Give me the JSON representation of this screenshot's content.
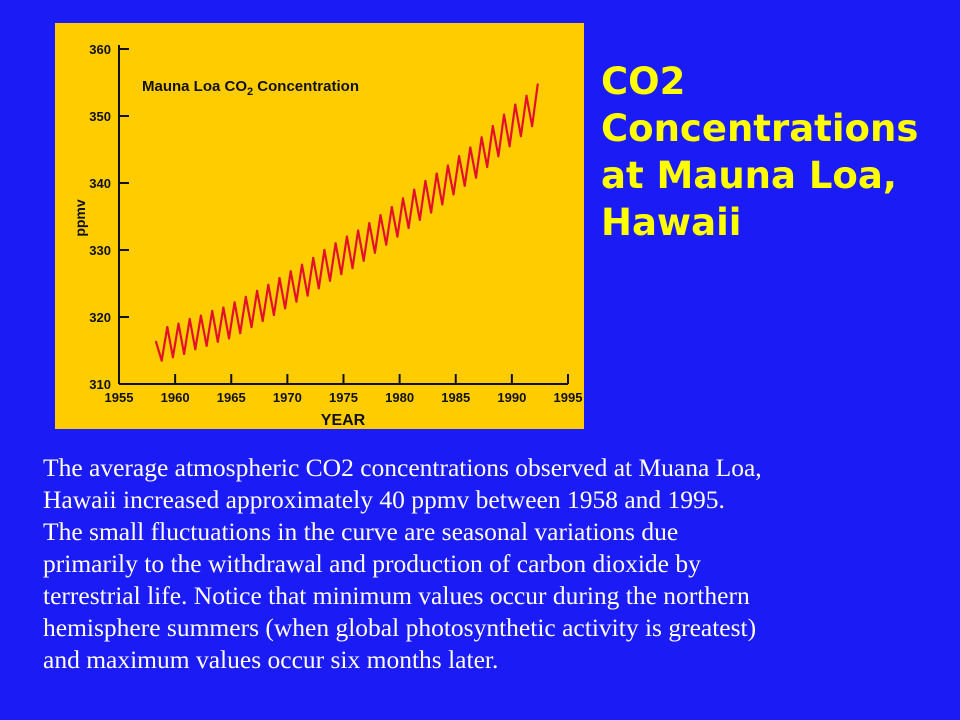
{
  "slide": {
    "title_lines": [
      "CO2",
      "Concentrations",
      "at Mauna Loa,",
      "Hawaii"
    ],
    "caption_lines": [
      "The average atmospheric CO2 concentrations observed at Muana Loa,",
      "Hawaii increased approximately 40 ppmv between 1958 and 1995.",
      "The small fluctuations in the curve are seasonal variations due",
      "primarily to the withdrawal and production of carbon dioxide by",
      "terrestrial life. Notice that minimum values occur during the northern",
      "hemisphere summers (when global photosynthetic activity is greatest)",
      "and maximum values occur six months later."
    ]
  },
  "colors": {
    "background": "#1b1bf5",
    "chart_panel": "#ffcc00",
    "title_text": "#ffff00",
    "caption_text": "#ffffff",
    "series_line": "#e3102b",
    "axis": "#111111"
  },
  "chart_data": {
    "type": "line",
    "title": "Mauna Loa CO2 Concentration",
    "xlabel": "YEAR",
    "ylabel": "ppmv",
    "xlim": [
      1955,
      1995
    ],
    "ylim": [
      310,
      360
    ],
    "x_ticks": [
      "1955",
      "1960",
      "1965",
      "1970",
      "1975",
      "1980",
      "1985",
      "1990",
      "1995"
    ],
    "y_ticks": [
      "310",
      "320",
      "330",
      "340",
      "350",
      "360"
    ],
    "grid": false,
    "legend": "none",
    "series": [
      {
        "name": "",
        "x": [
          1958.3,
          1958.8,
          1959.3,
          1959.8,
          1960.3,
          1960.8,
          1961.3,
          1961.8,
          1962.3,
          1962.8,
          1963.3,
          1963.8,
          1964.3,
          1964.8,
          1965.3,
          1965.8,
          1966.3,
          1966.8,
          1967.3,
          1967.8,
          1968.3,
          1968.8,
          1969.3,
          1969.8,
          1970.3,
          1970.8,
          1971.3,
          1971.8,
          1972.3,
          1972.8,
          1973.3,
          1973.8,
          1974.3,
          1974.8,
          1975.3,
          1975.8,
          1976.3,
          1976.8,
          1977.3,
          1977.8,
          1978.3,
          1978.8,
          1979.3,
          1979.8,
          1980.3,
          1980.8,
          1981.3,
          1981.8,
          1982.3,
          1982.8,
          1983.3,
          1983.8,
          1984.3,
          1984.8,
          1985.3,
          1985.8,
          1986.3,
          1986.8,
          1987.3,
          1987.8,
          1988.3,
          1988.8,
          1989.3,
          1989.8,
          1990.3,
          1990.8,
          1991.3,
          1991.8,
          1992.3
        ],
        "values": [
          316.3,
          313.5,
          318.5,
          314.0,
          319.0,
          314.5,
          319.7,
          315.2,
          320.2,
          315.7,
          320.9,
          316.3,
          321.4,
          316.8,
          322.2,
          317.6,
          323.0,
          318.5,
          323.9,
          319.4,
          324.8,
          320.3,
          325.8,
          321.3,
          326.8,
          322.3,
          327.8,
          323.2,
          328.8,
          324.3,
          330.0,
          325.4,
          331.0,
          326.4,
          332.0,
          327.3,
          332.9,
          328.4,
          334.0,
          329.6,
          335.2,
          330.8,
          336.4,
          332.0,
          337.7,
          333.3,
          339.0,
          334.5,
          340.3,
          335.6,
          341.4,
          336.8,
          342.6,
          338.3,
          344.0,
          339.6,
          345.3,
          340.8,
          346.8,
          342.4,
          348.5,
          344.0,
          350.2,
          345.5,
          351.7,
          347.0,
          353.0,
          348.5,
          354.7
        ]
      }
    ]
  }
}
